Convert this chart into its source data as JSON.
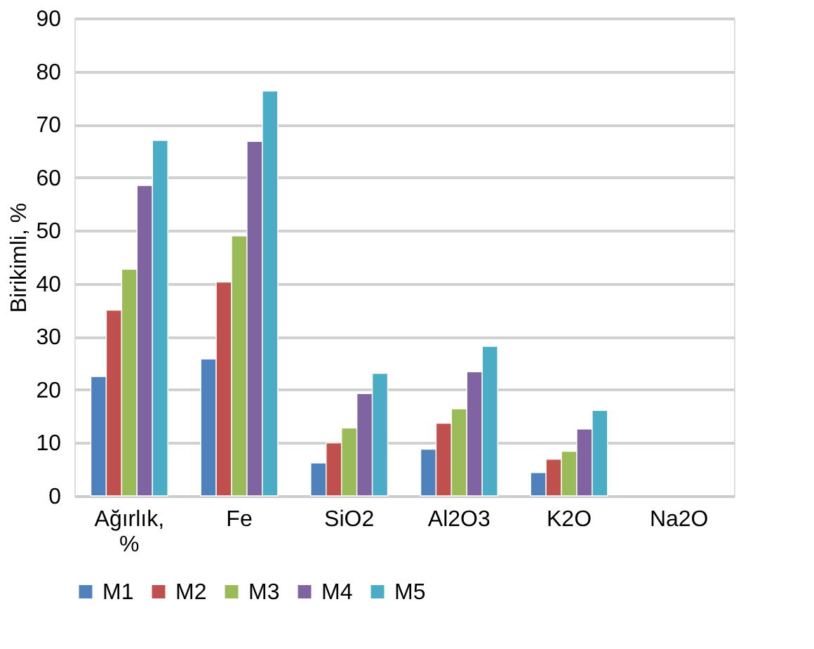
{
  "chart_data": {
    "type": "bar",
    "ylabel": "Birikimli, %",
    "categories": [
      "Ağırlık, %",
      "Fe",
      "SiO2",
      "Al2O3",
      "K2O",
      "Na2O"
    ],
    "series": [
      {
        "name": "M1",
        "color": "#4f81bd",
        "values": [
          22.5,
          25.8,
          6.2,
          8.8,
          4.4,
          null
        ]
      },
      {
        "name": "M2",
        "color": "#c0504d",
        "values": [
          35,
          40.3,
          10,
          13.7,
          6.9,
          null
        ]
      },
      {
        "name": "M3",
        "color": "#9bbb59",
        "values": [
          42.7,
          49,
          12.8,
          16.4,
          8.4,
          null
        ]
      },
      {
        "name": "M4",
        "color": "#8064a2",
        "values": [
          58.5,
          66.8,
          19.3,
          23.4,
          12.6,
          null
        ]
      },
      {
        "name": "M5",
        "color": "#4bacc6",
        "values": [
          67,
          76.3,
          23.1,
          28.2,
          16.1,
          null
        ]
      }
    ],
    "ylim": [
      0,
      90
    ],
    "yticks": [
      0,
      10,
      20,
      30,
      40,
      50,
      60,
      70,
      80,
      90
    ],
    "grid": "y",
    "legend": "bottom"
  }
}
